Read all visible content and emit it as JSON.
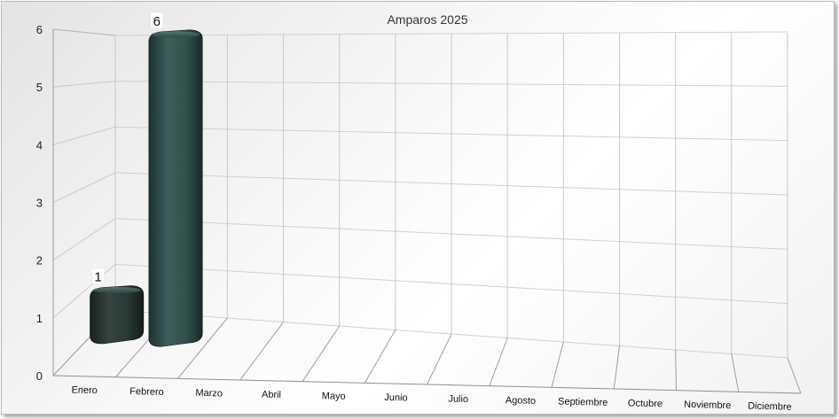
{
  "chart_data": {
    "type": "bar",
    "title": "Amparos 2025",
    "categories": [
      "Enero",
      "Febrero",
      "Marzo",
      "Abril",
      "Mayo",
      "Junio",
      "Julio",
      "Agosto",
      "Septiembre",
      "Octubre",
      "Noviembre",
      "Diciembre"
    ],
    "series": [
      {
        "values": [
          1,
          6,
          0,
          0,
          0,
          0,
          0,
          0,
          0,
          0,
          0,
          0
        ],
        "colors": [
          "#2b3c38",
          "#2f4e4a"
        ]
      }
    ],
    "data_labels": [
      "1",
      "6"
    ],
    "yticks": [
      "0",
      "1",
      "2",
      "3",
      "4",
      "5",
      "6"
    ],
    "ylim": [
      0,
      6
    ],
    "grid": true,
    "style": "3d"
  }
}
